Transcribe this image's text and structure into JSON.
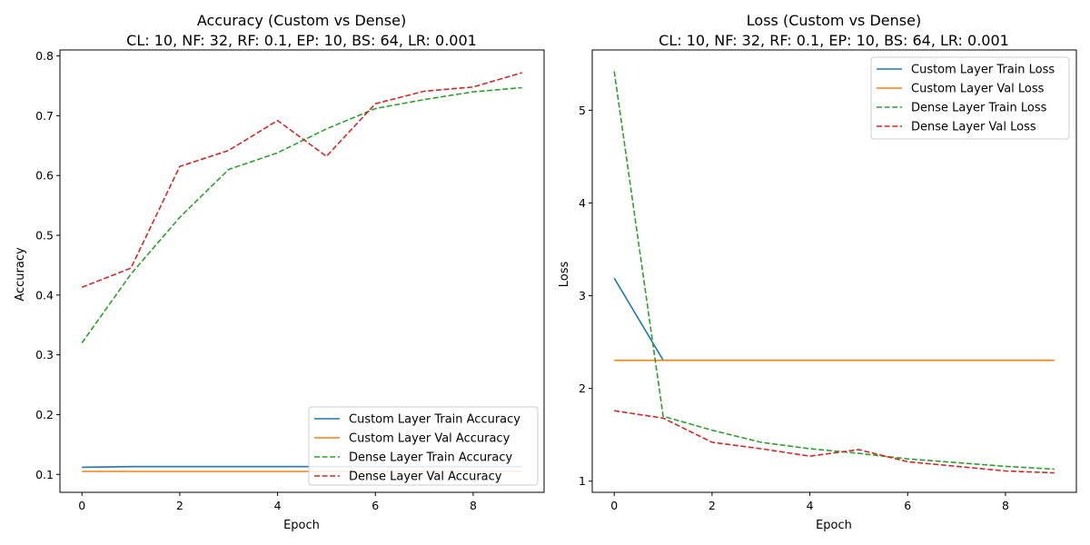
{
  "chart_data": [
    {
      "type": "line",
      "title": "Accuracy (Custom vs Dense)",
      "subtitle": "CL: 10, NF: 32, RF: 0.1, EP: 10, BS: 64, LR: 0.001",
      "xlabel": "Epoch",
      "ylabel": "Accuracy",
      "xlim": [
        -0.45,
        9.45
      ],
      "ylim": [
        0.07,
        0.81
      ],
      "xticks": [
        0,
        2,
        4,
        6,
        8
      ],
      "yticks": [
        0.1,
        0.2,
        0.3,
        0.4,
        0.5,
        0.6,
        0.7,
        0.8
      ],
      "grid": false,
      "legend_position": "lower-right",
      "x": [
        0,
        1,
        2,
        3,
        4,
        5,
        6,
        7,
        8,
        9
      ],
      "series": [
        {
          "name": "Custom Layer Train Accuracy",
          "color": "#1f77b4",
          "dash": "solid",
          "values": [
            0.112,
            0.113,
            0.113,
            0.113,
            0.113,
            0.113,
            0.113,
            0.113,
            0.113,
            0.113
          ]
        },
        {
          "name": "Custom Layer Val Accuracy",
          "color": "#ff7f0e",
          "dash": "solid",
          "values": [
            0.105,
            0.105,
            0.105,
            0.105,
            0.105,
            0.105,
            0.105,
            0.105,
            0.105,
            0.105
          ]
        },
        {
          "name": "Dense Layer Train Accuracy",
          "color": "#2ca02c",
          "dash": "dashed",
          "values": [
            0.32,
            0.435,
            0.53,
            0.61,
            0.638,
            0.678,
            0.712,
            0.727,
            0.74,
            0.747
          ]
        },
        {
          "name": "Dense Layer Val Accuracy",
          "color": "#d62728",
          "dash": "dashed",
          "values": [
            0.413,
            0.445,
            0.615,
            0.642,
            0.692,
            0.632,
            0.72,
            0.741,
            0.748,
            0.772
          ]
        }
      ]
    },
    {
      "type": "line",
      "title": "Loss (Custom vs Dense)",
      "subtitle": "CL: 10, NF: 32, RF: 0.1, EP: 10, BS: 64, LR: 0.001",
      "xlabel": "Epoch",
      "ylabel": "Loss",
      "xlim": [
        -0.45,
        9.45
      ],
      "ylim": [
        0.88,
        5.65
      ],
      "xticks": [
        0,
        2,
        4,
        6,
        8
      ],
      "yticks": [
        1,
        2,
        3,
        4,
        5
      ],
      "grid": false,
      "legend_position": "upper-right",
      "x": [
        0,
        1,
        2,
        3,
        4,
        5,
        6,
        7,
        8,
        9
      ],
      "series": [
        {
          "name": "Custom Layer Train Loss",
          "color": "#1f77b4",
          "dash": "solid",
          "values": [
            3.19,
            2.305,
            2.303,
            2.303,
            2.303,
            2.303,
            2.303,
            2.303,
            2.303,
            2.303
          ]
        },
        {
          "name": "Custom Layer Val Loss",
          "color": "#ff7f0e",
          "dash": "solid",
          "values": [
            2.303,
            2.303,
            2.303,
            2.303,
            2.303,
            2.303,
            2.303,
            2.303,
            2.303,
            2.303
          ]
        },
        {
          "name": "Dense Layer Train Loss",
          "color": "#2ca02c",
          "dash": "dashed",
          "values": [
            5.42,
            1.7,
            1.55,
            1.42,
            1.35,
            1.3,
            1.24,
            1.2,
            1.16,
            1.13
          ]
        },
        {
          "name": "Dense Layer Val Loss",
          "color": "#d62728",
          "dash": "dashed",
          "values": [
            1.76,
            1.68,
            1.42,
            1.35,
            1.27,
            1.34,
            1.21,
            1.16,
            1.11,
            1.09
          ]
        }
      ]
    }
  ]
}
